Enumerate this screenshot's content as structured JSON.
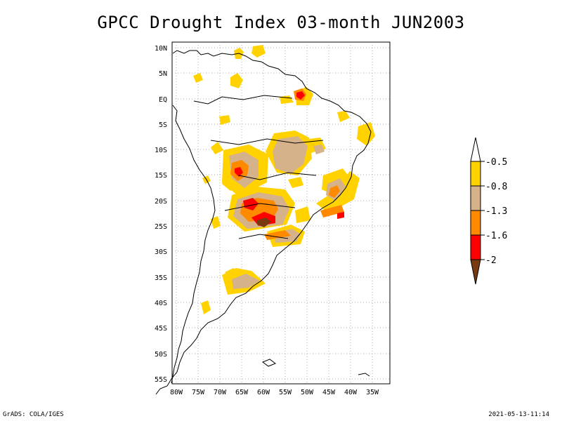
{
  "title": "GPCC Drought Index 03-month JUN2003",
  "map": {
    "lat_labels": [
      "10N",
      "5N",
      "EQ",
      "5S",
      "10S",
      "15S",
      "20S",
      "25S",
      "30S",
      "35S",
      "40S",
      "45S",
      "50S",
      "55S"
    ],
    "lon_labels": [
      "80W",
      "75W",
      "70W",
      "65W",
      "60W",
      "55W",
      "50W",
      "45W",
      "40W",
      "35W"
    ]
  },
  "legend": {
    "thresholds": [
      "-0.5",
      "-0.8",
      "-1.3",
      "-1.6",
      "-2"
    ],
    "colors": {
      "above": "#ffffff",
      "c1": "#ffd200",
      "c2": "#d6b28a",
      "c3": "#ff8a00",
      "c4": "#ff0000",
      "c5": "#7a3a10"
    }
  },
  "footer": {
    "left": "GrADS: COLA/IGES",
    "right": "2021-05-13-11:14"
  }
}
